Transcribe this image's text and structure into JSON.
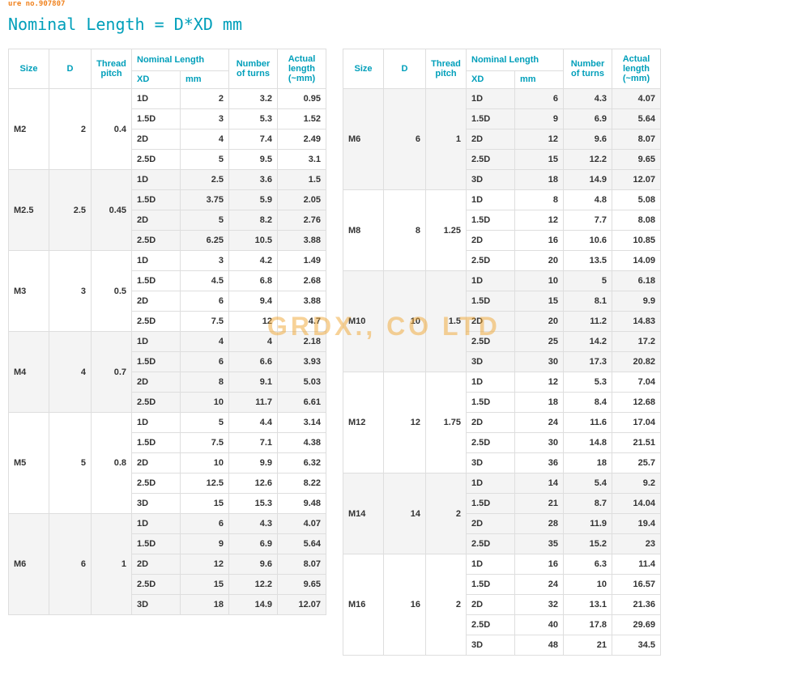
{
  "topLabel": "ure no.907807",
  "formula": "Nominal Length = D*XD mm",
  "watermark": "GRDX., CO LTD",
  "headers": {
    "size": "Size",
    "d": "D",
    "pitch": "Thread pitch",
    "nomlen": "Nominal Length",
    "turns": "Number of turns",
    "actual": "Actual length (~mm)",
    "xd": "XD",
    "mm": "mm"
  },
  "colors": {
    "header_text": "#009fba",
    "border": "#dedede",
    "alt_bg": "#f4f4f4",
    "watermark": "rgba(240,165,50,0.5)",
    "top_label": "#f0821e"
  },
  "left": [
    {
      "size": "M2",
      "d": "2",
      "pitch": "0.4",
      "alt": false,
      "rows": [
        {
          "xd": "1D",
          "mm": "2",
          "turns": "3.2",
          "act": "0.95"
        },
        {
          "xd": "1.5D",
          "mm": "3",
          "turns": "5.3",
          "act": "1.52"
        },
        {
          "xd": "2D",
          "mm": "4",
          "turns": "7.4",
          "act": "2.49"
        },
        {
          "xd": "2.5D",
          "mm": "5",
          "turns": "9.5",
          "act": "3.1"
        }
      ]
    },
    {
      "size": "M2.5",
      "d": "2.5",
      "pitch": "0.45",
      "alt": true,
      "rows": [
        {
          "xd": "1D",
          "mm": "2.5",
          "turns": "3.6",
          "act": "1.5"
        },
        {
          "xd": "1.5D",
          "mm": "3.75",
          "turns": "5.9",
          "act": "2.05"
        },
        {
          "xd": "2D",
          "mm": "5",
          "turns": "8.2",
          "act": "2.76"
        },
        {
          "xd": "2.5D",
          "mm": "6.25",
          "turns": "10.5",
          "act": "3.88"
        }
      ]
    },
    {
      "size": "M3",
      "d": "3",
      "pitch": "0.5",
      "alt": false,
      "rows": [
        {
          "xd": "1D",
          "mm": "3",
          "turns": "4.2",
          "act": "1.49"
        },
        {
          "xd": "1.5D",
          "mm": "4.5",
          "turns": "6.8",
          "act": "2.68"
        },
        {
          "xd": "2D",
          "mm": "6",
          "turns": "9.4",
          "act": "3.88"
        },
        {
          "xd": "2.5D",
          "mm": "7.5",
          "turns": "12",
          "act": "4.7"
        }
      ]
    },
    {
      "size": "M4",
      "d": "4",
      "pitch": "0.7",
      "alt": true,
      "rows": [
        {
          "xd": "1D",
          "mm": "4",
          "turns": "4",
          "act": "2.18"
        },
        {
          "xd": "1.5D",
          "mm": "6",
          "turns": "6.6",
          "act": "3.93"
        },
        {
          "xd": "2D",
          "mm": "8",
          "turns": "9.1",
          "act": "5.03"
        },
        {
          "xd": "2.5D",
          "mm": "10",
          "turns": "11.7",
          "act": "6.61"
        }
      ]
    },
    {
      "size": "M5",
      "d": "5",
      "pitch": "0.8",
      "alt": false,
      "rows": [
        {
          "xd": "1D",
          "mm": "5",
          "turns": "4.4",
          "act": "3.14"
        },
        {
          "xd": "1.5D",
          "mm": "7.5",
          "turns": "7.1",
          "act": "4.38"
        },
        {
          "xd": "2D",
          "mm": "10",
          "turns": "9.9",
          "act": "6.32"
        },
        {
          "xd": "2.5D",
          "mm": "12.5",
          "turns": "12.6",
          "act": "8.22"
        },
        {
          "xd": "3D",
          "mm": "15",
          "turns": "15.3",
          "act": "9.48"
        }
      ]
    },
    {
      "size": "M6",
      "d": "6",
      "pitch": "1",
      "alt": true,
      "rows": [
        {
          "xd": "1D",
          "mm": "6",
          "turns": "4.3",
          "act": "4.07"
        },
        {
          "xd": "1.5D",
          "mm": "9",
          "turns": "6.9",
          "act": "5.64"
        },
        {
          "xd": "2D",
          "mm": "12",
          "turns": "9.6",
          "act": "8.07"
        },
        {
          "xd": "2.5D",
          "mm": "15",
          "turns": "12.2",
          "act": "9.65"
        },
        {
          "xd": "3D",
          "mm": "18",
          "turns": "14.9",
          "act": "12.07"
        }
      ]
    }
  ],
  "right": [
    {
      "size": "M6",
      "d": "6",
      "pitch": "1",
      "alt": true,
      "rows": [
        {
          "xd": "1D",
          "mm": "6",
          "turns": "4.3",
          "act": "4.07"
        },
        {
          "xd": "1.5D",
          "mm": "9",
          "turns": "6.9",
          "act": "5.64"
        },
        {
          "xd": "2D",
          "mm": "12",
          "turns": "9.6",
          "act": "8.07"
        },
        {
          "xd": "2.5D",
          "mm": "15",
          "turns": "12.2",
          "act": "9.65"
        },
        {
          "xd": "3D",
          "mm": "18",
          "turns": "14.9",
          "act": "12.07"
        }
      ]
    },
    {
      "size": "M8",
      "d": "8",
      "pitch": "1.25",
      "alt": false,
      "rows": [
        {
          "xd": "1D",
          "mm": "8",
          "turns": "4.8",
          "act": "5.08"
        },
        {
          "xd": "1.5D",
          "mm": "12",
          "turns": "7.7",
          "act": "8.08"
        },
        {
          "xd": "2D",
          "mm": "16",
          "turns": "10.6",
          "act": "10.85"
        },
        {
          "xd": "2.5D",
          "mm": "20",
          "turns": "13.5",
          "act": "14.09"
        }
      ]
    },
    {
      "size": "M10",
      "d": "10",
      "pitch": "1.5",
      "alt": true,
      "rows": [
        {
          "xd": "1D",
          "mm": "10",
          "turns": "5",
          "act": "6.18"
        },
        {
          "xd": "1.5D",
          "mm": "15",
          "turns": "8.1",
          "act": "9.9"
        },
        {
          "xd": "2D",
          "mm": "20",
          "turns": "11.2",
          "act": "14.83"
        },
        {
          "xd": "2.5D",
          "mm": "25",
          "turns": "14.2",
          "act": "17.2"
        },
        {
          "xd": "3D",
          "mm": "30",
          "turns": "17.3",
          "act": "20.82"
        }
      ]
    },
    {
      "size": "M12",
      "d": "12",
      "pitch": "1.75",
      "alt": false,
      "rows": [
        {
          "xd": "1D",
          "mm": "12",
          "turns": "5.3",
          "act": "7.04"
        },
        {
          "xd": "1.5D",
          "mm": "18",
          "turns": "8.4",
          "act": "12.68"
        },
        {
          "xd": "2D",
          "mm": "24",
          "turns": "11.6",
          "act": "17.04"
        },
        {
          "xd": "2.5D",
          "mm": "30",
          "turns": "14.8",
          "act": "21.51"
        },
        {
          "xd": "3D",
          "mm": "36",
          "turns": "18",
          "act": "25.7"
        }
      ]
    },
    {
      "size": "M14",
      "d": "14",
      "pitch": "2",
      "alt": true,
      "rows": [
        {
          "xd": "1D",
          "mm": "14",
          "turns": "5.4",
          "act": "9.2"
        },
        {
          "xd": "1.5D",
          "mm": "21",
          "turns": "8.7",
          "act": "14.04"
        },
        {
          "xd": "2D",
          "mm": "28",
          "turns": "11.9",
          "act": "19.4"
        },
        {
          "xd": "2.5D",
          "mm": "35",
          "turns": "15.2",
          "act": "23"
        }
      ]
    },
    {
      "size": "M16",
      "d": "16",
      "pitch": "2",
      "alt": false,
      "rows": [
        {
          "xd": "1D",
          "mm": "16",
          "turns": "6.3",
          "act": "11.4"
        },
        {
          "xd": "1.5D",
          "mm": "24",
          "turns": "10",
          "act": "16.57"
        },
        {
          "xd": "2D",
          "mm": "32",
          "turns": "13.1",
          "act": "21.36"
        },
        {
          "xd": "2.5D",
          "mm": "40",
          "turns": "17.8",
          "act": "29.69"
        },
        {
          "xd": "3D",
          "mm": "48",
          "turns": "21",
          "act": "34.5"
        }
      ]
    }
  ]
}
